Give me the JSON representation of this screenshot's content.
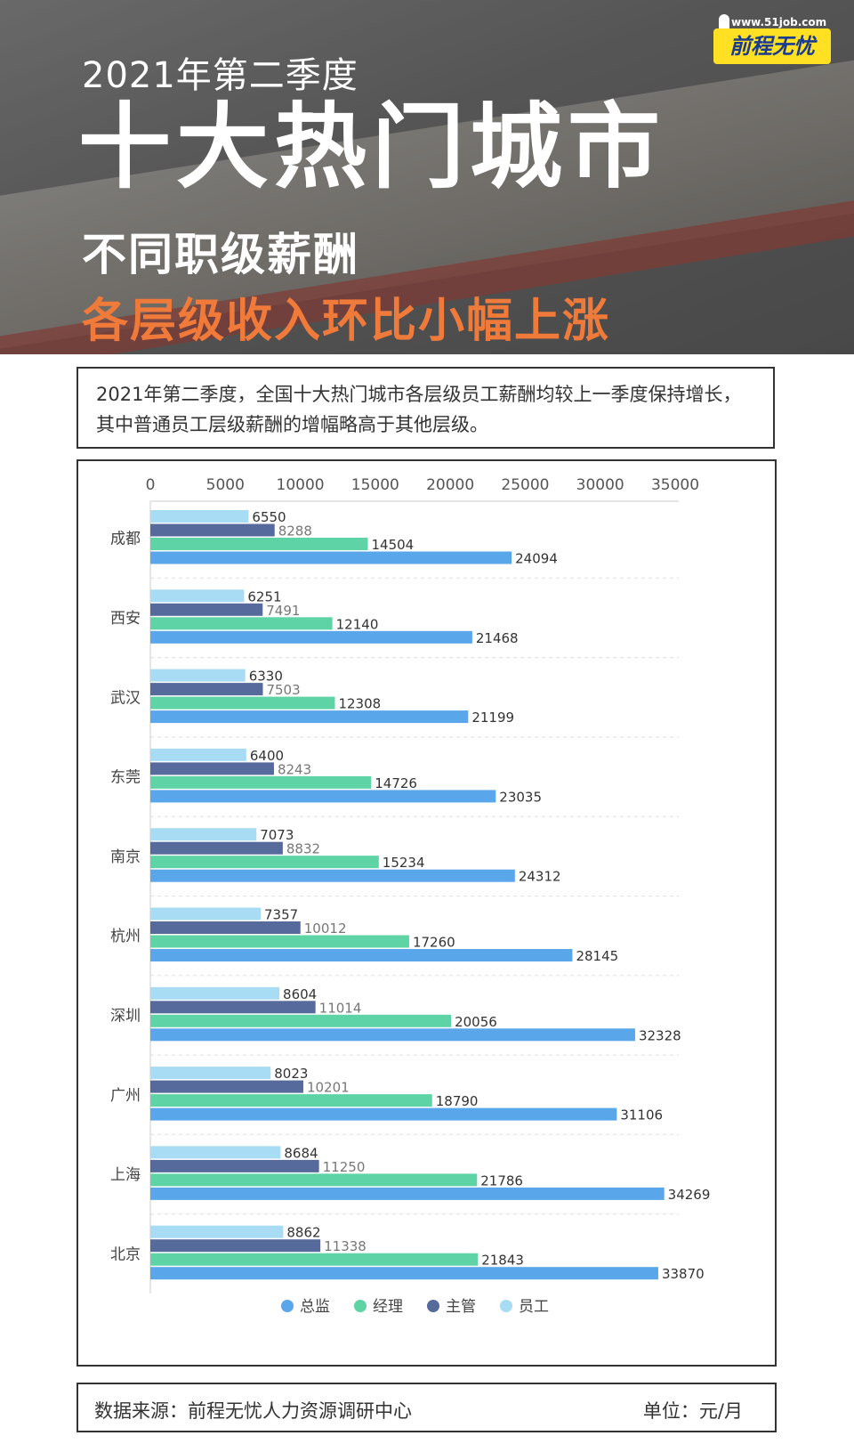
{
  "header": {
    "subtitle": "2021年第二季度",
    "title": "十大热门城市",
    "line3": "不同职级薪酬",
    "line4": "各层级收入环比小幅上涨",
    "logo_url": "www.51job.com",
    "logo_text": "前程无忧"
  },
  "intro_text": "2021年第二季度，全国十大热门城市各层级员工薪酬均较上一季度保持增长，其中普通员工层级薪酬的增幅略高于其他层级。",
  "footer": {
    "source": "数据来源：前程无忧人力资源调研中心",
    "unit": "单位：元/月"
  },
  "chart_data": {
    "type": "bar",
    "orientation": "horizontal",
    "categories": [
      "成都",
      "西安",
      "武汉",
      "东莞",
      "南京",
      "杭州",
      "深圳",
      "广州",
      "上海",
      "北京"
    ],
    "x_ticks": [
      "0",
      "5000",
      "10000",
      "15000",
      "20000",
      "25000",
      "30000",
      "35000"
    ],
    "xlim": [
      0,
      35000
    ],
    "legend_position": "bottom",
    "series": [
      {
        "name": "员工",
        "color": "#a8dcf4",
        "values": [
          6550,
          6251,
          6330,
          6400,
          7073,
          7357,
          8604,
          8023,
          8684,
          8862
        ]
      },
      {
        "name": "主管",
        "color": "#566a9c",
        "values": [
          8288,
          7491,
          7503,
          8243,
          8832,
          10012,
          11014,
          10201,
          11250,
          11338
        ]
      },
      {
        "name": "经理",
        "color": "#5ed4a6",
        "values": [
          14504,
          12140,
          12308,
          14726,
          15234,
          17260,
          20056,
          18790,
          21786,
          21843
        ]
      },
      {
        "name": "总监",
        "color": "#5aa6ea",
        "values": [
          24094,
          21468,
          21199,
          23035,
          24312,
          28145,
          32328,
          31106,
          34269,
          33870
        ]
      }
    ],
    "legend_order": [
      "总监",
      "经理",
      "主管",
      "员工"
    ]
  }
}
